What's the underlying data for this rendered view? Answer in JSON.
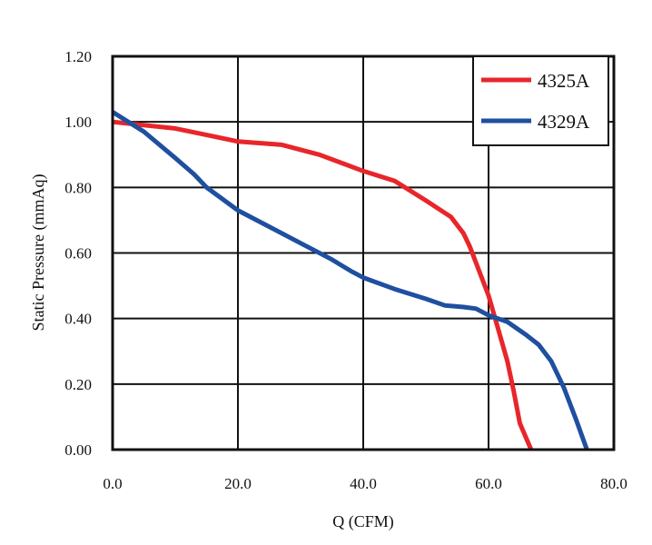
{
  "chart_data": {
    "type": "line",
    "title": "",
    "xlabel": "Q (CFM)",
    "ylabel": "Static Pressure (mmAq)",
    "xlim": [
      0,
      80
    ],
    "ylim": [
      0,
      1.2
    ],
    "xticks": [
      "0.0",
      "20.0",
      "40.0",
      "60.0",
      "80.0"
    ],
    "xtick_values": [
      0,
      20,
      40,
      60,
      80
    ],
    "yticks": [
      "0.00",
      "0.20",
      "0.40",
      "0.60",
      "0.80",
      "1.00",
      "1.20"
    ],
    "ytick_values": [
      0,
      0.2,
      0.4,
      0.6,
      0.8,
      1.0,
      1.2
    ],
    "grid": true,
    "legend_position": "top-right",
    "series": [
      {
        "name": "4325A",
        "color": "#e8262a",
        "x": [
          0,
          5,
          10,
          15,
          20,
          27,
          33,
          40,
          45,
          50,
          54,
          56,
          57,
          58,
          60,
          61.5,
          63,
          64,
          65,
          66.8
        ],
        "y": [
          1.0,
          0.99,
          0.98,
          0.96,
          0.94,
          0.93,
          0.9,
          0.85,
          0.82,
          0.76,
          0.71,
          0.66,
          0.62,
          0.57,
          0.47,
          0.37,
          0.27,
          0.18,
          0.08,
          0.0
        ]
      },
      {
        "name": "4329A",
        "color": "#1f4fa0",
        "x": [
          0,
          5,
          10,
          13,
          15,
          20,
          25,
          30,
          35,
          38,
          40,
          45,
          50,
          53,
          56,
          58,
          60,
          63,
          66,
          68,
          70,
          72,
          74,
          75.7
        ],
        "y": [
          1.03,
          0.97,
          0.89,
          0.84,
          0.8,
          0.73,
          0.68,
          0.63,
          0.58,
          0.545,
          0.525,
          0.49,
          0.46,
          0.44,
          0.435,
          0.43,
          0.41,
          0.39,
          0.35,
          0.32,
          0.27,
          0.19,
          0.09,
          0.0
        ]
      }
    ]
  }
}
